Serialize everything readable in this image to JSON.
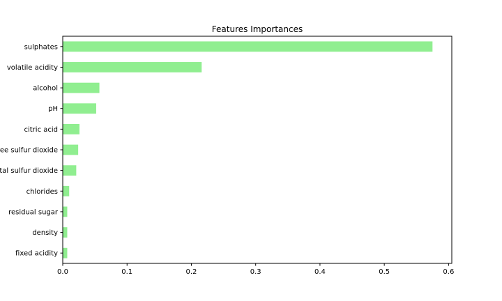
{
  "chart_data": {
    "type": "bar",
    "orientation": "horizontal",
    "title": "Features Importances",
    "xlabel": "",
    "ylabel": "",
    "xlim": [
      0,
      0.605
    ],
    "xticks": [
      0.0,
      0.1,
      0.2,
      0.3,
      0.4,
      0.5,
      0.6
    ],
    "xtick_labels": [
      "0.0",
      "0.1",
      "0.2",
      "0.3",
      "0.4",
      "0.5",
      "0.6"
    ],
    "grid": false,
    "legend": "none",
    "bar_color": "#90ee90",
    "categories": [
      "sulphates",
      "volatile acidity",
      "alcohol",
      "pH",
      "citric acid",
      "free sulfur dioxide",
      "total sulfur dioxide",
      "chlorides",
      "residual sugar",
      "density",
      "fixed acidity"
    ],
    "values": [
      0.575,
      0.216,
      0.057,
      0.052,
      0.026,
      0.024,
      0.021,
      0.01,
      0.007,
      0.007,
      0.007
    ]
  }
}
